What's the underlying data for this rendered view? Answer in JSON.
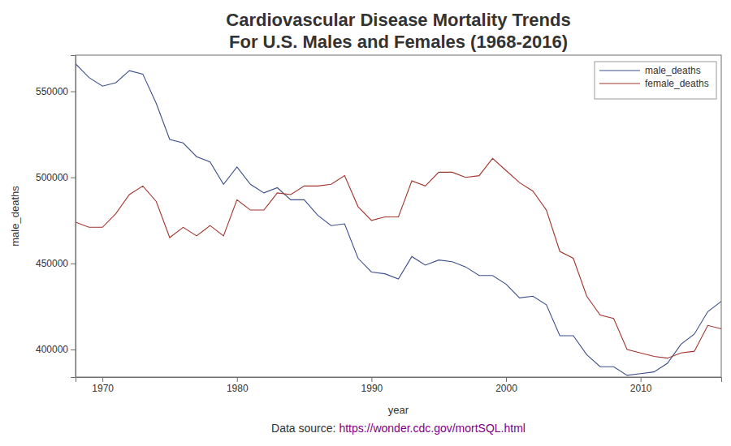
{
  "chart_data": {
    "type": "line",
    "title": "Cardiovascular Disease Mortality Trends",
    "subtitle": "For U.S. Males and Females (1968-2016)",
    "x_label": "year",
    "y_label": "male_deaths",
    "source_text": "Data source:",
    "source_link": "https://wonder.cdc.gov/mortSQL.html",
    "x": [
      1968,
      1969,
      1970,
      1971,
      1972,
      1973,
      1974,
      1975,
      1976,
      1977,
      1978,
      1979,
      1980,
      1981,
      1982,
      1983,
      1984,
      1985,
      1986,
      1987,
      1988,
      1989,
      1990,
      1991,
      1992,
      1993,
      1994,
      1995,
      1996,
      1997,
      1998,
      1999,
      2000,
      2001,
      2002,
      2003,
      2004,
      2005,
      2006,
      2007,
      2008,
      2009,
      2010,
      2011,
      2012,
      2013,
      2014,
      2015,
      2016
    ],
    "series": [
      {
        "name": "male_deaths",
        "color": "#3c4f8c",
        "values": [
          566000,
          558000,
          553000,
          555000,
          562000,
          560000,
          543000,
          522000,
          520000,
          512000,
          509000,
          496000,
          506000,
          496000,
          491000,
          494000,
          487000,
          487000,
          478000,
          472000,
          473000,
          453000,
          445000,
          444000,
          441000,
          454000,
          449000,
          452000,
          451000,
          448000,
          443000,
          443000,
          438000,
          430000,
          431000,
          426000,
          408000,
          408000,
          397000,
          390000,
          390000,
          385000,
          386000,
          387000,
          392000,
          403000,
          409000,
          422000,
          428000
        ]
      },
      {
        "name": "female_deaths",
        "color": "#a2352c",
        "values": [
          474000,
          471000,
          471000,
          479000,
          490000,
          495000,
          486000,
          465000,
          471000,
          466000,
          472000,
          466000,
          487000,
          481000,
          481000,
          491000,
          490000,
          495000,
          495000,
          496000,
          501000,
          483000,
          475000,
          477000,
          477000,
          498000,
          495000,
          503000,
          503000,
          500000,
          501000,
          511000,
          504000,
          497000,
          492000,
          481000,
          457000,
          453000,
          431000,
          420000,
          418000,
          400000,
          398000,
          396000,
          395000,
          398000,
          399000,
          414000,
          412000
        ]
      }
    ],
    "xlim": [
      1968,
      2016
    ],
    "xticks": [
      1970,
      1980,
      1990,
      2000,
      2010
    ],
    "ylim": [
      384000,
      571000
    ],
    "yticks": [
      400000,
      450000,
      500000,
      550000
    ],
    "grid": false,
    "legend": "upper right"
  }
}
